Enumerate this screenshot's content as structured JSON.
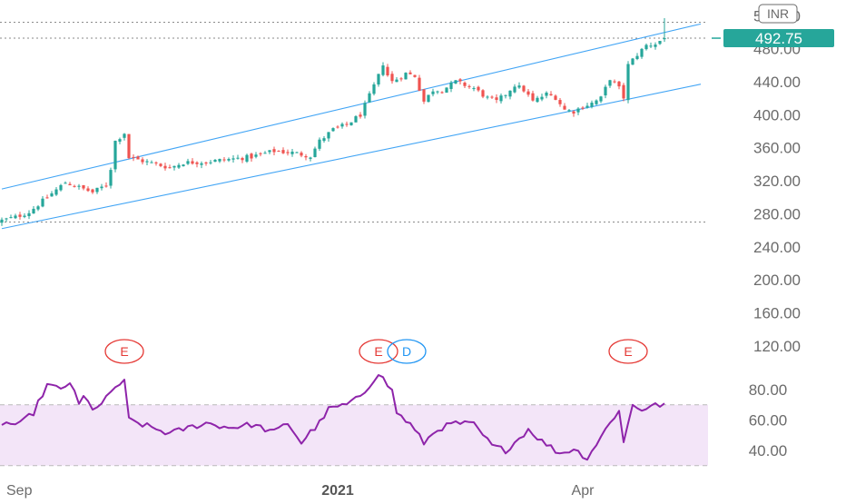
{
  "chart_data": {
    "type": "candlestick",
    "currency_badge": "INR",
    "last_price_label": "492.75",
    "price_axis": {
      "ticks": [
        "520.00",
        "480.00",
        "440.00",
        "400.00",
        "360.00",
        "320.00",
        "280.00",
        "240.00",
        "200.00",
        "160.00",
        "120.00"
      ],
      "tick_values": [
        520,
        480,
        440,
        400,
        360,
        320,
        280,
        240,
        200,
        160,
        120
      ]
    },
    "x_axis": {
      "labels": [
        "Sep",
        "2021",
        "Apr"
      ],
      "label_bars": [
        1,
        74,
        128
      ],
      "bar_count": 147
    },
    "horizontal_levels": [
      512,
      492.75,
      270
    ],
    "channel": {
      "upper": {
        "from": {
          "bar": 0,
          "price": 310
        },
        "to": {
          "bar": 154,
          "price": 510
        }
      },
      "lower": {
        "from": {
          "bar": 0,
          "price": 262
        },
        "to": {
          "bar": 154,
          "price": 437
        }
      }
    },
    "events": [
      {
        "bar": 27,
        "label": "E"
      },
      {
        "bar": 83,
        "label": "E"
      },
      {
        "bar": 89,
        "label": "D"
      },
      {
        "bar": 138,
        "label": "E"
      }
    ],
    "rsi": {
      "ticks": [
        "80.00",
        "60.00",
        "40.00"
      ],
      "tick_values": [
        80,
        60,
        40
      ],
      "band": [
        30,
        70
      ],
      "anchors": [
        [
          0,
          58
        ],
        [
          4,
          57
        ],
        [
          7,
          65
        ],
        [
          10,
          83
        ],
        [
          13,
          80
        ],
        [
          15,
          85
        ],
        [
          17,
          70
        ],
        [
          18,
          75
        ],
        [
          20,
          68
        ],
        [
          22,
          70
        ],
        [
          25,
          82
        ],
        [
          27,
          85
        ],
        [
          28,
          60
        ],
        [
          33,
          55
        ],
        [
          37,
          51
        ],
        [
          40,
          54
        ],
        [
          45,
          58
        ],
        [
          50,
          55
        ],
        [
          55,
          57
        ],
        [
          60,
          52
        ],
        [
          63,
          58
        ],
        [
          66,
          45
        ],
        [
          68,
          52
        ],
        [
          70,
          58
        ],
        [
          72,
          67
        ],
        [
          77,
          71
        ],
        [
          80,
          79
        ],
        [
          83,
          91
        ],
        [
          86,
          79
        ],
        [
          87,
          65
        ],
        [
          90,
          57
        ],
        [
          93,
          45
        ],
        [
          96,
          54
        ],
        [
          100,
          58
        ],
        [
          104,
          57
        ],
        [
          108,
          43
        ],
        [
          111,
          40
        ],
        [
          114,
          48
        ],
        [
          116,
          54
        ],
        [
          119,
          46
        ],
        [
          123,
          38
        ],
        [
          126,
          41
        ],
        [
          129,
          35
        ],
        [
          132,
          49
        ],
        [
          134,
          58
        ],
        [
          136,
          67
        ],
        [
          137,
          45
        ],
        [
          139,
          70
        ],
        [
          141,
          67
        ],
        [
          143,
          69
        ],
        [
          147,
          71
        ]
      ],
      "range": [
        25,
        95
      ]
    },
    "ohlc_anchors": [
      [
        0,
        272
      ],
      [
        3,
        276
      ],
      [
        6,
        282
      ],
      [
        10,
        300
      ],
      [
        14,
        318
      ],
      [
        17,
        312
      ],
      [
        20,
        306
      ],
      [
        23,
        315
      ],
      [
        24,
        335
      ],
      [
        25,
        368
      ],
      [
        27,
        378
      ],
      [
        28,
        348
      ],
      [
        31,
        344
      ],
      [
        34,
        340
      ],
      [
        37,
        336
      ],
      [
        40,
        342
      ],
      [
        45,
        343
      ],
      [
        50,
        346
      ],
      [
        55,
        349
      ],
      [
        60,
        356
      ],
      [
        64,
        354
      ],
      [
        68,
        350
      ],
      [
        70,
        368
      ],
      [
        73,
        382
      ],
      [
        76,
        388
      ],
      [
        79,
        400
      ],
      [
        81,
        423
      ],
      [
        83,
        447
      ],
      [
        84,
        462
      ],
      [
        85,
        448
      ],
      [
        86,
        440
      ],
      [
        89,
        450
      ],
      [
        91,
        447
      ],
      [
        93,
        416
      ],
      [
        95,
        430
      ],
      [
        97,
        430
      ],
      [
        100,
        440
      ],
      [
        104,
        432
      ],
      [
        107,
        420
      ],
      [
        109,
        416
      ],
      [
        111,
        425
      ],
      [
        113,
        436
      ],
      [
        115,
        430
      ],
      [
        117,
        416
      ],
      [
        120,
        425
      ],
      [
        122,
        421
      ],
      [
        124,
        406
      ],
      [
        126,
        404
      ],
      [
        128,
        410
      ],
      [
        130,
        414
      ],
      [
        132,
        420
      ],
      [
        134,
        444
      ],
      [
        136,
        432
      ],
      [
        137,
        421
      ],
      [
        138,
        460
      ],
      [
        140,
        473
      ],
      [
        142,
        484
      ],
      [
        144,
        486
      ],
      [
        146,
        493
      ],
      [
        147,
        505
      ]
    ],
    "price_range": [
      100,
      528
    ]
  }
}
